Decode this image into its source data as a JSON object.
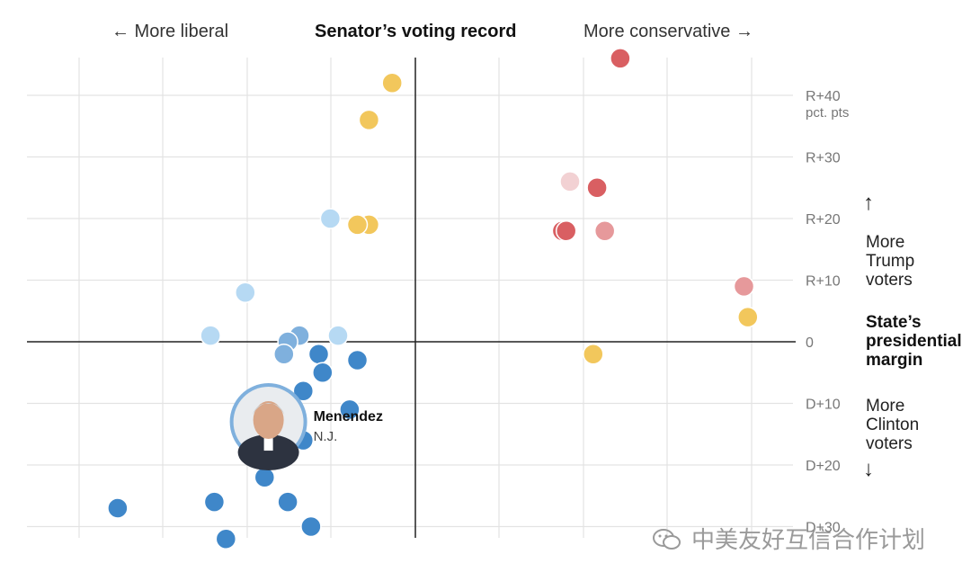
{
  "header": {
    "left": "← More liberal",
    "center": "Senator’s voting record",
    "right": "More conservative →"
  },
  "right_panel": {
    "up_arrow": "↑",
    "down_arrow": "↓",
    "trump": "More\nTrump\nvoters",
    "title": "State’s\npresidential\nmargin",
    "clinton": "More\nClinton\nvoters"
  },
  "watermark": {
    "icon": "wechat-icon",
    "text": "中美友好互信合作计划"
  },
  "chart_data": {
    "type": "scatter",
    "x_range": [
      -1,
      1
    ],
    "y_range": [
      -32,
      47
    ],
    "grid": true,
    "y_ticks": [
      {
        "value": 40,
        "label": "R+40",
        "sublabel": "pct. pts"
      },
      {
        "value": 30,
        "label": "R+30"
      },
      {
        "value": 20,
        "label": "R+20"
      },
      {
        "value": 10,
        "label": "R+10"
      },
      {
        "value": 0,
        "label": "0"
      },
      {
        "value": -10,
        "label": "D+10"
      },
      {
        "value": -20,
        "label": "D+20"
      },
      {
        "value": -30,
        "label": "D+30"
      }
    ],
    "colors": {
      "dark_blue": "#3f87c9",
      "mid_blue": "#7fb0dd",
      "light_blue": "#b6d9f3",
      "yellow": "#f2c75c",
      "dark_red": "#d95f62",
      "mid_red": "#e6999b",
      "light_red": "#f2d1d3"
    },
    "points": [
      {
        "x": 0.53,
        "y": 46,
        "color": "dark_red"
      },
      {
        "x": 0.47,
        "y": 25,
        "color": "dark_red"
      },
      {
        "x": 0.38,
        "y": 18,
        "color": "dark_red"
      },
      {
        "x": 0.39,
        "y": 18,
        "color": "dark_red"
      },
      {
        "x": 0.4,
        "y": 26,
        "color": "light_red"
      },
      {
        "x": 0.49,
        "y": 18,
        "color": "mid_red"
      },
      {
        "x": 0.85,
        "y": 9,
        "color": "mid_red"
      },
      {
        "x": -0.06,
        "y": 42,
        "color": "yellow"
      },
      {
        "x": -0.12,
        "y": 36,
        "color": "yellow"
      },
      {
        "x": -0.12,
        "y": 19,
        "color": "yellow"
      },
      {
        "x": -0.15,
        "y": 19,
        "color": "yellow"
      },
      {
        "x": 0.46,
        "y": -2,
        "color": "yellow"
      },
      {
        "x": 0.86,
        "y": 4,
        "color": "yellow"
      },
      {
        "x": -0.22,
        "y": 20,
        "color": "light_blue"
      },
      {
        "x": -0.44,
        "y": 8,
        "color": "light_blue"
      },
      {
        "x": -0.53,
        "y": 1,
        "color": "light_blue"
      },
      {
        "x": -0.2,
        "y": 1,
        "color": "light_blue"
      },
      {
        "x": -0.3,
        "y": 1,
        "color": "mid_blue"
      },
      {
        "x": -0.33,
        "y": 0,
        "color": "mid_blue"
      },
      {
        "x": -0.34,
        "y": -2,
        "color": "mid_blue"
      },
      {
        "x": -0.25,
        "y": -2,
        "color": "dark_blue"
      },
      {
        "x": -0.15,
        "y": -3,
        "color": "dark_blue"
      },
      {
        "x": -0.24,
        "y": -5,
        "color": "dark_blue"
      },
      {
        "x": -0.29,
        "y": -8,
        "color": "dark_blue"
      },
      {
        "x": -0.17,
        "y": -11,
        "color": "dark_blue"
      },
      {
        "x": -0.29,
        "y": -16,
        "color": "dark_blue"
      },
      {
        "x": -0.39,
        "y": -22,
        "color": "dark_blue"
      },
      {
        "x": -0.33,
        "y": -26,
        "color": "dark_blue"
      },
      {
        "x": -0.52,
        "y": -26,
        "color": "dark_blue"
      },
      {
        "x": -0.77,
        "y": -27,
        "color": "dark_blue"
      },
      {
        "x": -0.27,
        "y": -30,
        "color": "dark_blue"
      },
      {
        "x": -0.49,
        "y": -32,
        "color": "dark_blue"
      }
    ],
    "annotation": {
      "x": -0.38,
      "y": -13,
      "name": "Menendez",
      "state": "N.J."
    }
  }
}
